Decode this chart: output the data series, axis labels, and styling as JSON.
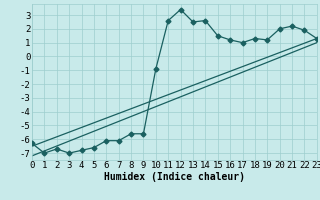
{
  "title": "",
  "xlabel": "Humidex (Indice chaleur)",
  "xlim": [
    0,
    23
  ],
  "ylim": [
    -7.5,
    3.8
  ],
  "xticks": [
    0,
    1,
    2,
    3,
    4,
    5,
    6,
    7,
    8,
    9,
    10,
    11,
    12,
    13,
    14,
    15,
    16,
    17,
    18,
    19,
    20,
    21,
    22,
    23
  ],
  "yticks": [
    -7,
    -6,
    -5,
    -4,
    -3,
    -2,
    -1,
    0,
    1,
    2,
    3
  ],
  "bg_color": "#c8eaea",
  "grid_color": "#9ecece",
  "line_color": "#1a6060",
  "main_x": [
    0,
    1,
    2,
    3,
    4,
    5,
    6,
    7,
    8,
    9,
    10,
    11,
    12,
    13,
    14,
    15,
    16,
    17,
    18,
    19,
    20,
    21,
    22,
    23
  ],
  "main_y": [
    -6.3,
    -7.0,
    -6.7,
    -7.0,
    -6.8,
    -6.6,
    -6.1,
    -6.1,
    -5.6,
    -5.6,
    -0.9,
    2.6,
    3.4,
    2.5,
    2.6,
    1.5,
    1.2,
    1.0,
    1.3,
    1.2,
    2.0,
    2.2,
    1.9,
    1.3
  ],
  "line1_x": [
    0,
    23
  ],
  "line1_y": [
    -6.5,
    1.3
  ],
  "line2_x": [
    0,
    23
  ],
  "line2_y": [
    -7.2,
    1.0
  ],
  "marker": "D",
  "marker_size": 2.5,
  "line_width": 0.9,
  "font_size": 6.5
}
